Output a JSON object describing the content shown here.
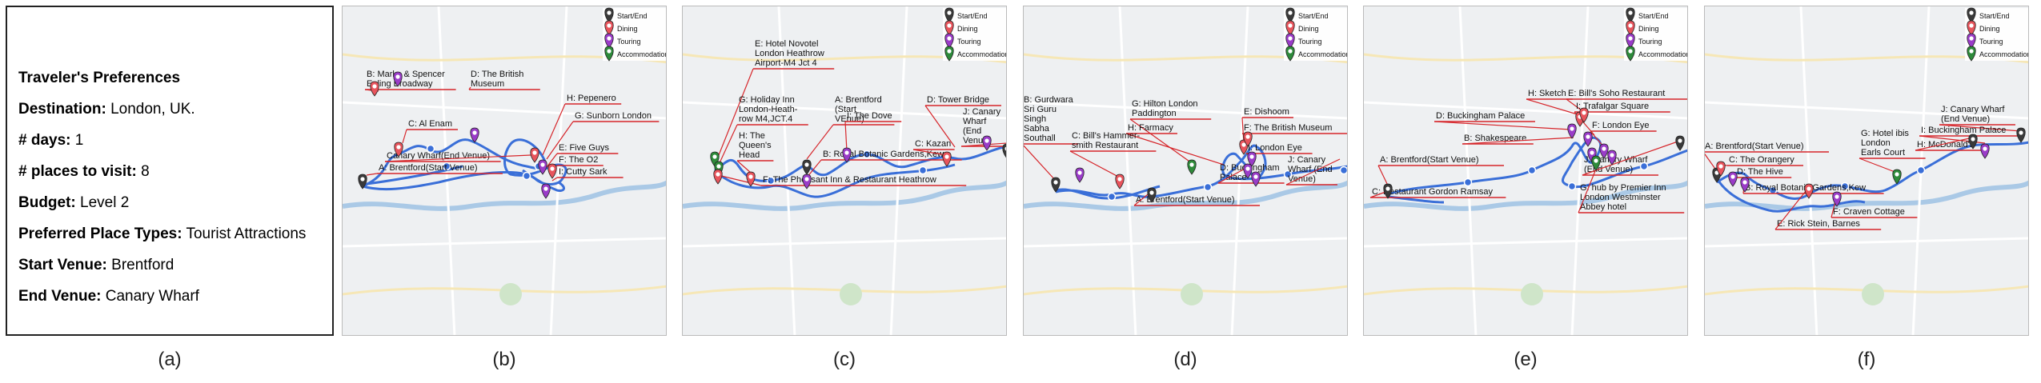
{
  "preferences": {
    "title": "Traveler's Preferences",
    "destination_label": "Destination:",
    "destination": "London, UK.",
    "days_label": "# days:",
    "days": "1",
    "places_label": "# places to visit:",
    "places": "8",
    "budget_label": "Budget:",
    "budget": "Level 2",
    "types_label": "Preferred Place Types:",
    "types": "Tourist Attractions",
    "start_label": "Start Venue:",
    "start": "Brentford",
    "end_label": "End Venue:",
    "end": "Canary Wharf"
  },
  "legend": {
    "start_end": "Start/End",
    "dining": "Dining",
    "touring": "Touring",
    "accommodation": "Accommodation"
  },
  "colors": {
    "route": "#3a6fd8",
    "label_line": "#d6262b",
    "start_end": "#3a3a3a",
    "dining": "#e8545c",
    "touring": "#9a3cc8",
    "accommodation": "#2e8b3a"
  },
  "captions": [
    "(a)",
    "(b)",
    "(c)",
    "(d)",
    "(e)",
    "(f)"
  ],
  "panels": [
    {
      "id": "b",
      "labels": [
        "B: Marks & Spencer\nEaling Broadway",
        "D: The British\nMuseum",
        "C: Al Enam",
        "Canary Wharf(End Venue)",
        "A: Brentford(Start Venue)",
        "H: Pepenero",
        "G: Sunborn London",
        "E: Five Guys",
        "F: The O2",
        "I: Cutty Sark"
      ]
    },
    {
      "id": "c",
      "labels": [
        "E: Hotel Novotel\nLondon Heathrow\nAirport-M4 Jct 4",
        "G: Holiday Inn\nLondon-Heath-\nrow M4,JCT.4",
        "A: Brentford\n(Start\nVEnue)",
        "I: The Dove",
        "D: Tower Bridge",
        "J: Canary\nWharf\n(End\nVenue)",
        "H: The\nQueen's\nHead",
        "B: Royal Botanic Gardens,Kew",
        "C: Kazan",
        "F: The Pheasant Inn & Restaurant Heathrow"
      ]
    },
    {
      "id": "d",
      "labels": [
        "B: Gurdwara\nSri Guru\nSingh\nSabha\nSouthall",
        "G: Hilton London\nPaddington",
        "E: Dishoom",
        "H: Farmacy",
        "F: The British Museum",
        "C: Bill's Hammer-\nsmith Restaurant",
        "I: London Eye",
        "J: Canary\nWharf (End\nVenue)",
        "D: Buckingham\nPalace",
        "A: Brentford(Start Venue)"
      ]
    },
    {
      "id": "e",
      "labels": [
        "H: Sketch",
        "E: Bill's Soho Restaurant",
        "D: Buckingham Palace",
        "I: Trafalgar Square",
        "B: Shakespeare",
        "F: London Eye",
        "A: Brentford(Start Venue)",
        "J: Canary Wharf\n(End Venue)",
        "G: hub by Premier Inn\nLondon Westminster\nAbbey hotel",
        "C: Restaurant Gordon Ramsay"
      ]
    },
    {
      "id": "f",
      "labels": [
        "J: Canary Wharf\n(End Venue)",
        "G: Hotel ibis\nLondon\nEarls Court",
        "I: Buckingham Palace",
        "A: Brentford(Start Venue)",
        "H: McDonald's",
        "C: The Orangery",
        "D: The Hive",
        "B: Royal Botanic Gardens,Kew",
        "F: Craven Cottage",
        "E: Rick Stein, Barnes"
      ]
    }
  ]
}
